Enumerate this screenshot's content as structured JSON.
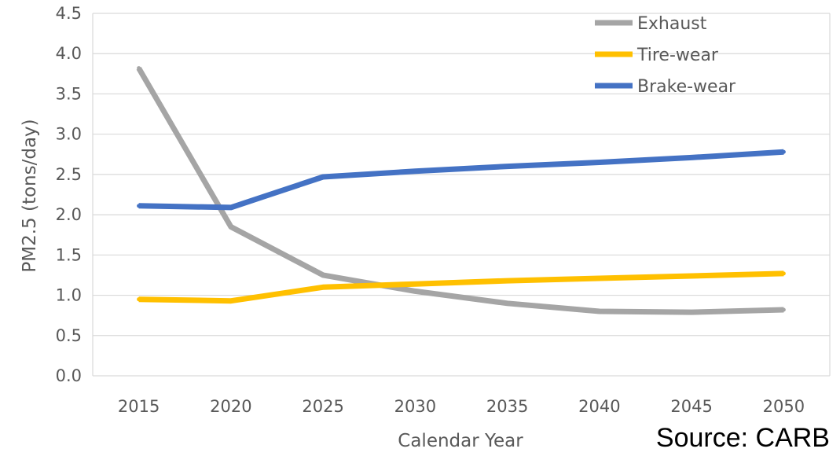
{
  "chart_data": {
    "type": "line",
    "x": [
      2015,
      2020,
      2025,
      2030,
      2035,
      2040,
      2045,
      2050
    ],
    "x_tick_labels": [
      "2015",
      "2020",
      "2025",
      "2030",
      "2035",
      "2040",
      "2045",
      "2050"
    ],
    "y_ticks": [
      0.0,
      0.5,
      1.0,
      1.5,
      2.0,
      2.5,
      3.0,
      3.5,
      4.0,
      4.5
    ],
    "y_tick_labels": [
      "0.0",
      "0.5",
      "1.0",
      "1.5",
      "2.0",
      "2.5",
      "3.0",
      "3.5",
      "4.0",
      "4.5"
    ],
    "ylim": [
      0,
      4.5
    ],
    "xlabel": "Calendar Year",
    "ylabel": "PM2.5 (tons/day)",
    "grid": "horizontal",
    "legend_position": "top-right",
    "series": [
      {
        "name": "Exhaust",
        "color": "#a5a5a5",
        "values": [
          3.82,
          1.85,
          1.25,
          1.05,
          0.9,
          0.8,
          0.79,
          0.82
        ]
      },
      {
        "name": "Tire-wear",
        "color": "#ffc000",
        "values": [
          0.95,
          0.93,
          1.1,
          1.14,
          1.18,
          1.21,
          1.24,
          1.27
        ]
      },
      {
        "name": "Brake-wear",
        "color": "#4472c4",
        "values": [
          2.11,
          2.09,
          2.47,
          2.54,
          2.6,
          2.65,
          2.71,
          2.78
        ]
      }
    ]
  },
  "annotation": {
    "source": "Source: CARB"
  }
}
